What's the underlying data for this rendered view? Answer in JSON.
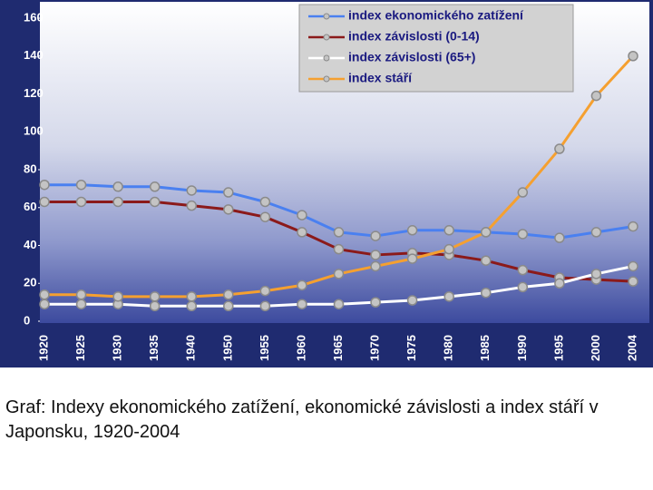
{
  "chart_data": {
    "type": "line",
    "categories": [
      "1920",
      "1925",
      "1930",
      "1935",
      "1940",
      "1950",
      "1955",
      "1960",
      "1965",
      "1970",
      "1975",
      "1980",
      "1985",
      "1990",
      "1995",
      "2000",
      "2004"
    ],
    "series": [
      {
        "name": "index ekonomického zatížení",
        "color": "#4a80f0",
        "values": [
          72,
          72,
          71,
          71,
          69,
          68,
          63,
          56,
          47,
          45,
          48,
          48,
          47,
          46,
          44,
          47,
          50
        ]
      },
      {
        "name": "index závislosti (0-14)",
        "color": "#8b1a1a",
        "values": [
          63,
          63,
          63,
          63,
          61,
          59,
          55,
          47,
          38,
          35,
          36,
          35,
          32,
          27,
          23,
          22,
          21
        ]
      },
      {
        "name": "index závislosti (65+)",
        "color": "#ffffff",
        "values": [
          9,
          9,
          9,
          8,
          8,
          8,
          8,
          9,
          9,
          10,
          11,
          13,
          15,
          18,
          20,
          25,
          29
        ]
      },
      {
        "name": "index stáří",
        "color": "#f5a030",
        "values": [
          14,
          14,
          13,
          13,
          13,
          14,
          16,
          19,
          25,
          29,
          33,
          38,
          47,
          68,
          91,
          119,
          140
        ]
      }
    ],
    "ylim": [
      0,
      160
    ],
    "yticks": [
      0,
      20,
      40,
      60,
      80,
      100,
      120,
      140,
      160
    ],
    "grid": false,
    "legend": "top-right"
  },
  "caption": "Graf: Indexy ekonomického zatížení, ekonomické závislosti a index stáří v Japonsku, 1920-2004"
}
